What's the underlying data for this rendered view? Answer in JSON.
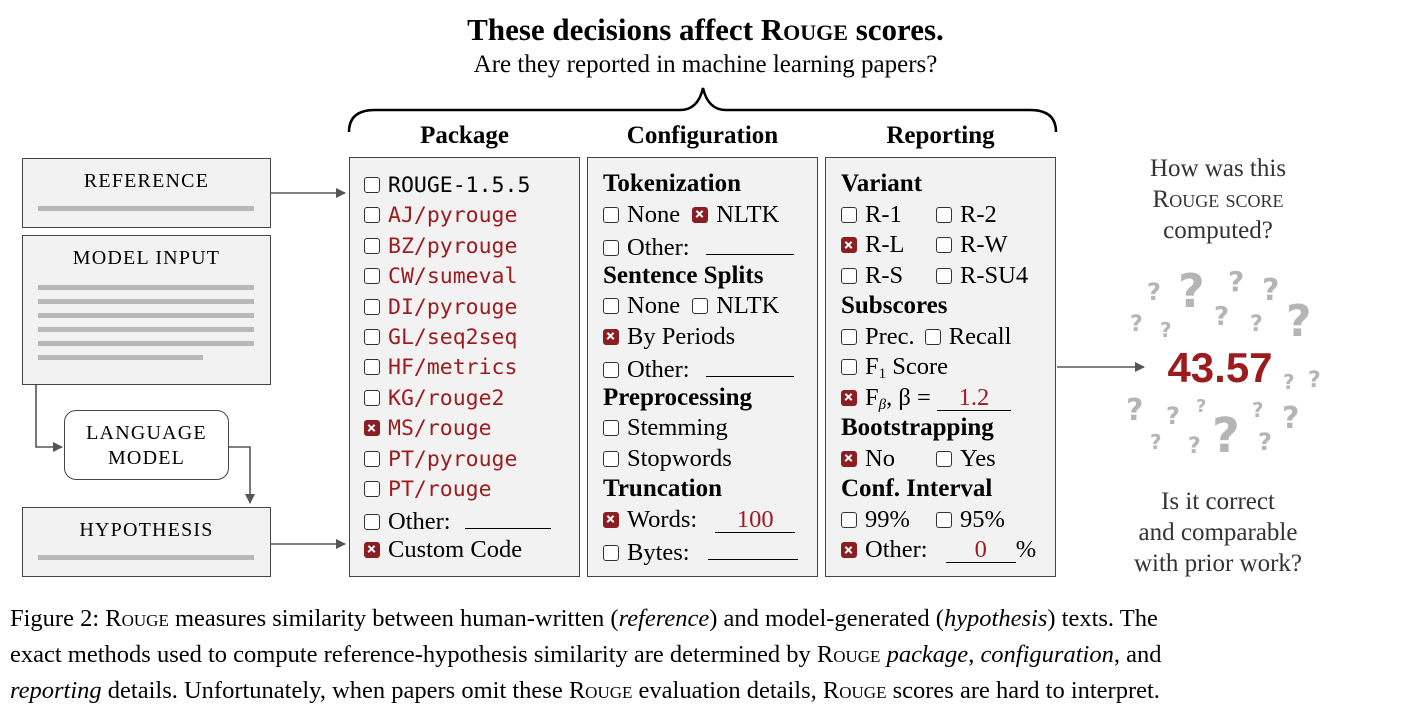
{
  "title": {
    "pre": "These decisions affect ",
    "rouge": "Rouge",
    "post": " scores."
  },
  "subtitle": "Are they reported in machine learning papers?",
  "left_boxes": {
    "reference": "REFERENCE",
    "model_input": "MODEL INPUT",
    "language_model": [
      "LANGUAGE",
      "MODEL"
    ],
    "hypothesis": "HYPOTHESIS"
  },
  "package": {
    "header": "Package",
    "items": [
      {
        "label": "ROUGE-1.5.5",
        "checked": false,
        "style": "mono"
      },
      {
        "label": "AJ/pyrouge",
        "checked": false,
        "style": "mono-red"
      },
      {
        "label": "BZ/pyrouge",
        "checked": false,
        "style": "mono-red"
      },
      {
        "label": "CW/sumeval",
        "checked": false,
        "style": "mono-red"
      },
      {
        "label": "DI/pyrouge",
        "checked": false,
        "style": "mono-red"
      },
      {
        "label": "GL/seq2seq",
        "checked": false,
        "style": "mono-red"
      },
      {
        "label": "HF/metrics",
        "checked": false,
        "style": "mono-red"
      },
      {
        "label": "KG/rouge2",
        "checked": false,
        "style": "mono-red"
      },
      {
        "label": "MS/rouge",
        "checked": true,
        "style": "mono-red"
      },
      {
        "label": "PT/pyrouge",
        "checked": false,
        "style": "mono-red"
      },
      {
        "label": "PT/rouge",
        "checked": false,
        "style": "mono-red"
      },
      {
        "label": "Other:",
        "checked": false,
        "style": "serif",
        "blank": ""
      },
      {
        "label": "Custom Code",
        "checked": true,
        "style": "serif"
      }
    ]
  },
  "configuration": {
    "header": "Configuration",
    "tokenization": "Tokenization",
    "tok_none": "None",
    "tok_nltk": "NLTK",
    "tok_other": "Other:",
    "sentence_splits": "Sentence Splits",
    "ss_none": "None",
    "ss_nltk": "NLTK",
    "ss_periods": "By Periods",
    "ss_other": "Other:",
    "preprocessing": "Preprocessing",
    "pp_stemming": "Stemming",
    "pp_stopwords": "Stopwords",
    "truncation": "Truncation",
    "tr_words": "Words:",
    "tr_words_value": "100",
    "tr_bytes": "Bytes:"
  },
  "reporting": {
    "header": "Reporting",
    "variant": "Variant",
    "r1": "R-1",
    "r2": "R-2",
    "rl": "R-L",
    "rw": "R-W",
    "rs": "R-S",
    "rsu4": "R-SU4",
    "subscores": "Subscores",
    "prec": "Prec.",
    "recall": "Recall",
    "f1_pre": "F",
    "f1_sub": "1",
    "f1_post": " Score",
    "fb_pre": "F",
    "fb_sub": "β",
    "fb_mid": ", β = ",
    "fb_value": "1.2",
    "bootstrapping": "Bootstrapping",
    "bs_no": "No",
    "bs_yes": "Yes",
    "conf_interval": "Conf. Interval",
    "ci_99": "99%",
    "ci_95": "95%",
    "ci_other": "Other:",
    "ci_other_value": "0",
    "ci_other_unit": "%"
  },
  "right": {
    "question_top": [
      "How was this",
      "Rouge score",
      "computed?"
    ],
    "score": "43.57",
    "question_bottom": [
      "Is it correct",
      "and comparable",
      "with prior work?"
    ],
    "mark": "?"
  },
  "caption": {
    "label": "Figure 2: ",
    "rouge": "Rouge",
    "t1": " measures similarity between human-written (",
    "reference": "reference",
    "t2": ") and model-generated (",
    "hypothesis": "hypothesis",
    "t3": ") texts. The",
    "t4": "exact methods used to compute reference-hypothesis similarity are determined by ",
    "package": "package",
    "t5": ", ",
    "configuration": "configuration",
    "t6": ", and",
    "reporting": "reporting",
    "t7": " details. Unfortunately, when papers omit these ",
    "t8": " evaluation details, ",
    "t9": " scores are hard to interpret."
  },
  "colors": {
    "accent": "#9b1b1f",
    "panel_bg": "#f2f2f2",
    "gray_line": "#b8b8b8",
    "question_gray": "#b5b5b5"
  }
}
